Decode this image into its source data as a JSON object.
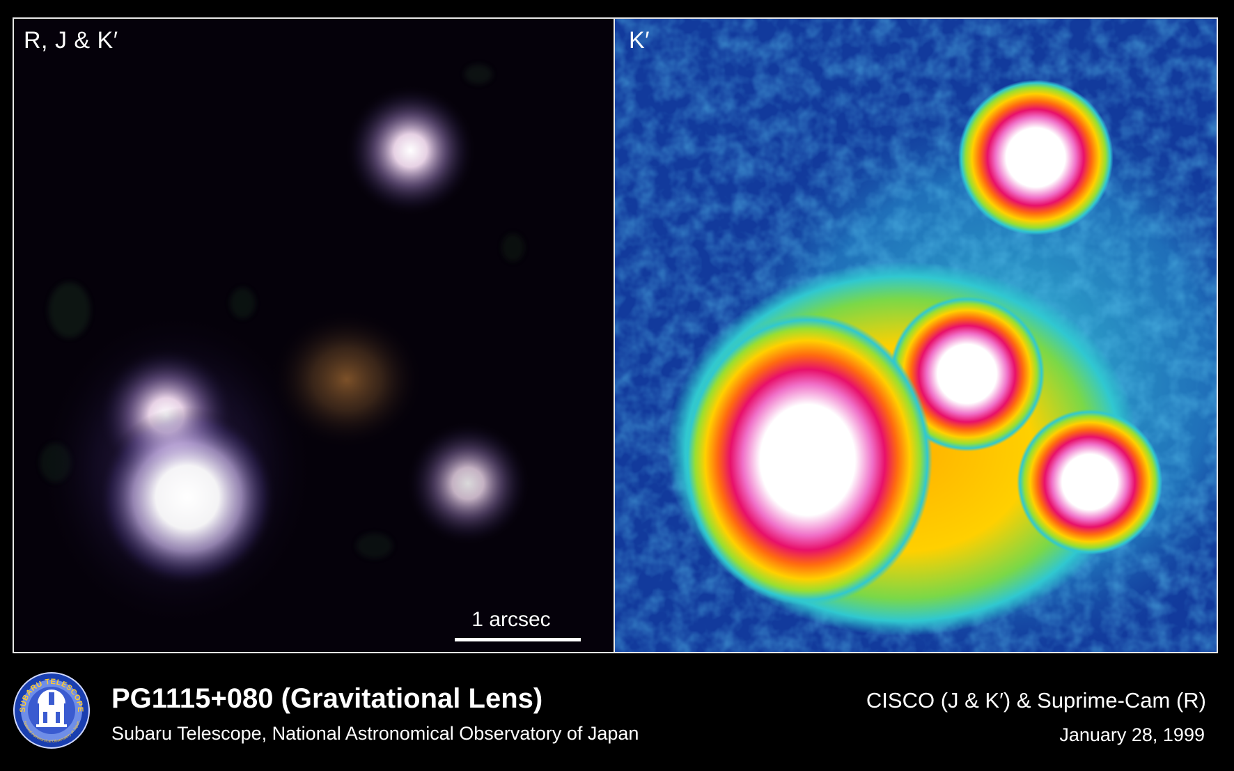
{
  "panels": {
    "left": {
      "label": "R, J & K′",
      "scale_bar_label": "1 arcsec"
    },
    "right": {
      "label": "K′"
    }
  },
  "caption": {
    "title": "PG1115+080 (Gravitational Lens)",
    "subtitle": "Subaru Telescope, National Astronomical Observatory of Japan",
    "instruments": "CISCO (J & K′) & Suprime-Cam (R)",
    "date": "January 28, 1999"
  },
  "logo": {
    "icon": "subaru-telescope-observatory-logo",
    "text_top": "SUBARU TELESCOPE",
    "text_bottom": "National Astronomical Observatory of Japan"
  },
  "colors": {
    "background": "#000000",
    "panel_border": "#e8e8e8",
    "kprime_background": "#123a9c",
    "kprime_mid": "#30c8d0",
    "kprime_high": "#ffd000",
    "kprime_peak": "#e8106a"
  }
}
